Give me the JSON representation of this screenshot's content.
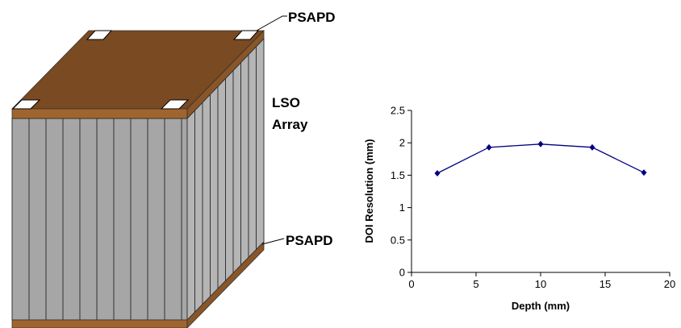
{
  "diagram": {
    "top_label": "PSAPD",
    "middle_label": [
      "LSO",
      "Array"
    ],
    "bottom_label": "PSAPD"
  },
  "chart_data": {
    "type": "line",
    "x_label": "Depth (mm)",
    "y_label": "DOI Resolution (mm)",
    "x": [
      2,
      6,
      10,
      14,
      18
    ],
    "series": [
      {
        "name": "DOI Resolution",
        "color": "#000080",
        "values": [
          1.53,
          1.93,
          1.98,
          1.93,
          1.54
        ]
      }
    ],
    "xlim": [
      0,
      20
    ],
    "xticks": [
      0,
      5,
      10,
      15,
      20
    ],
    "ylim": [
      0,
      2.5
    ],
    "yticks": [
      0,
      0.5,
      1,
      1.5,
      2,
      2.5
    ]
  }
}
